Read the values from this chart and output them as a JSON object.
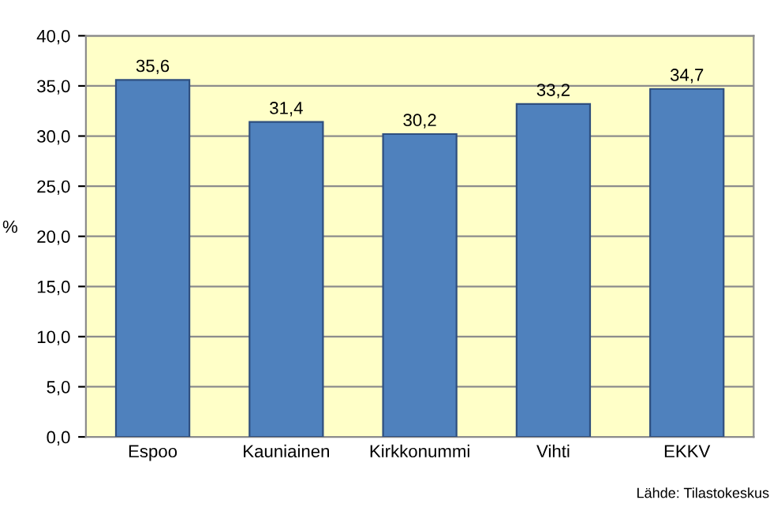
{
  "chart_data": {
    "type": "bar",
    "ylabel": "%",
    "categories": [
      "Espoo",
      "Kauniainen",
      "Kirkkonummi",
      "Vihti",
      "EKKV"
    ],
    "values": [
      35.6,
      31.4,
      30.2,
      33.2,
      34.7
    ],
    "value_labels": [
      "35,6",
      "31,4",
      "30,2",
      "33,2",
      "34,7"
    ],
    "color": "#4f81bd",
    "ylim": [
      0,
      40
    ],
    "yticks": [
      {
        "value": 0,
        "label": "0,0"
      },
      {
        "value": 5,
        "label": "5,0"
      },
      {
        "value": 10,
        "label": "10,0"
      },
      {
        "value": 15,
        "label": "15,0"
      },
      {
        "value": 20,
        "label": "20,0"
      },
      {
        "value": 25,
        "label": "25,0"
      },
      {
        "value": 30,
        "label": "30,0"
      },
      {
        "value": 35,
        "label": "35,0"
      },
      {
        "value": 40,
        "label": "40,0"
      }
    ],
    "grid": "y",
    "annotations": [
      "Lähde: Tilastokeskus"
    ]
  }
}
